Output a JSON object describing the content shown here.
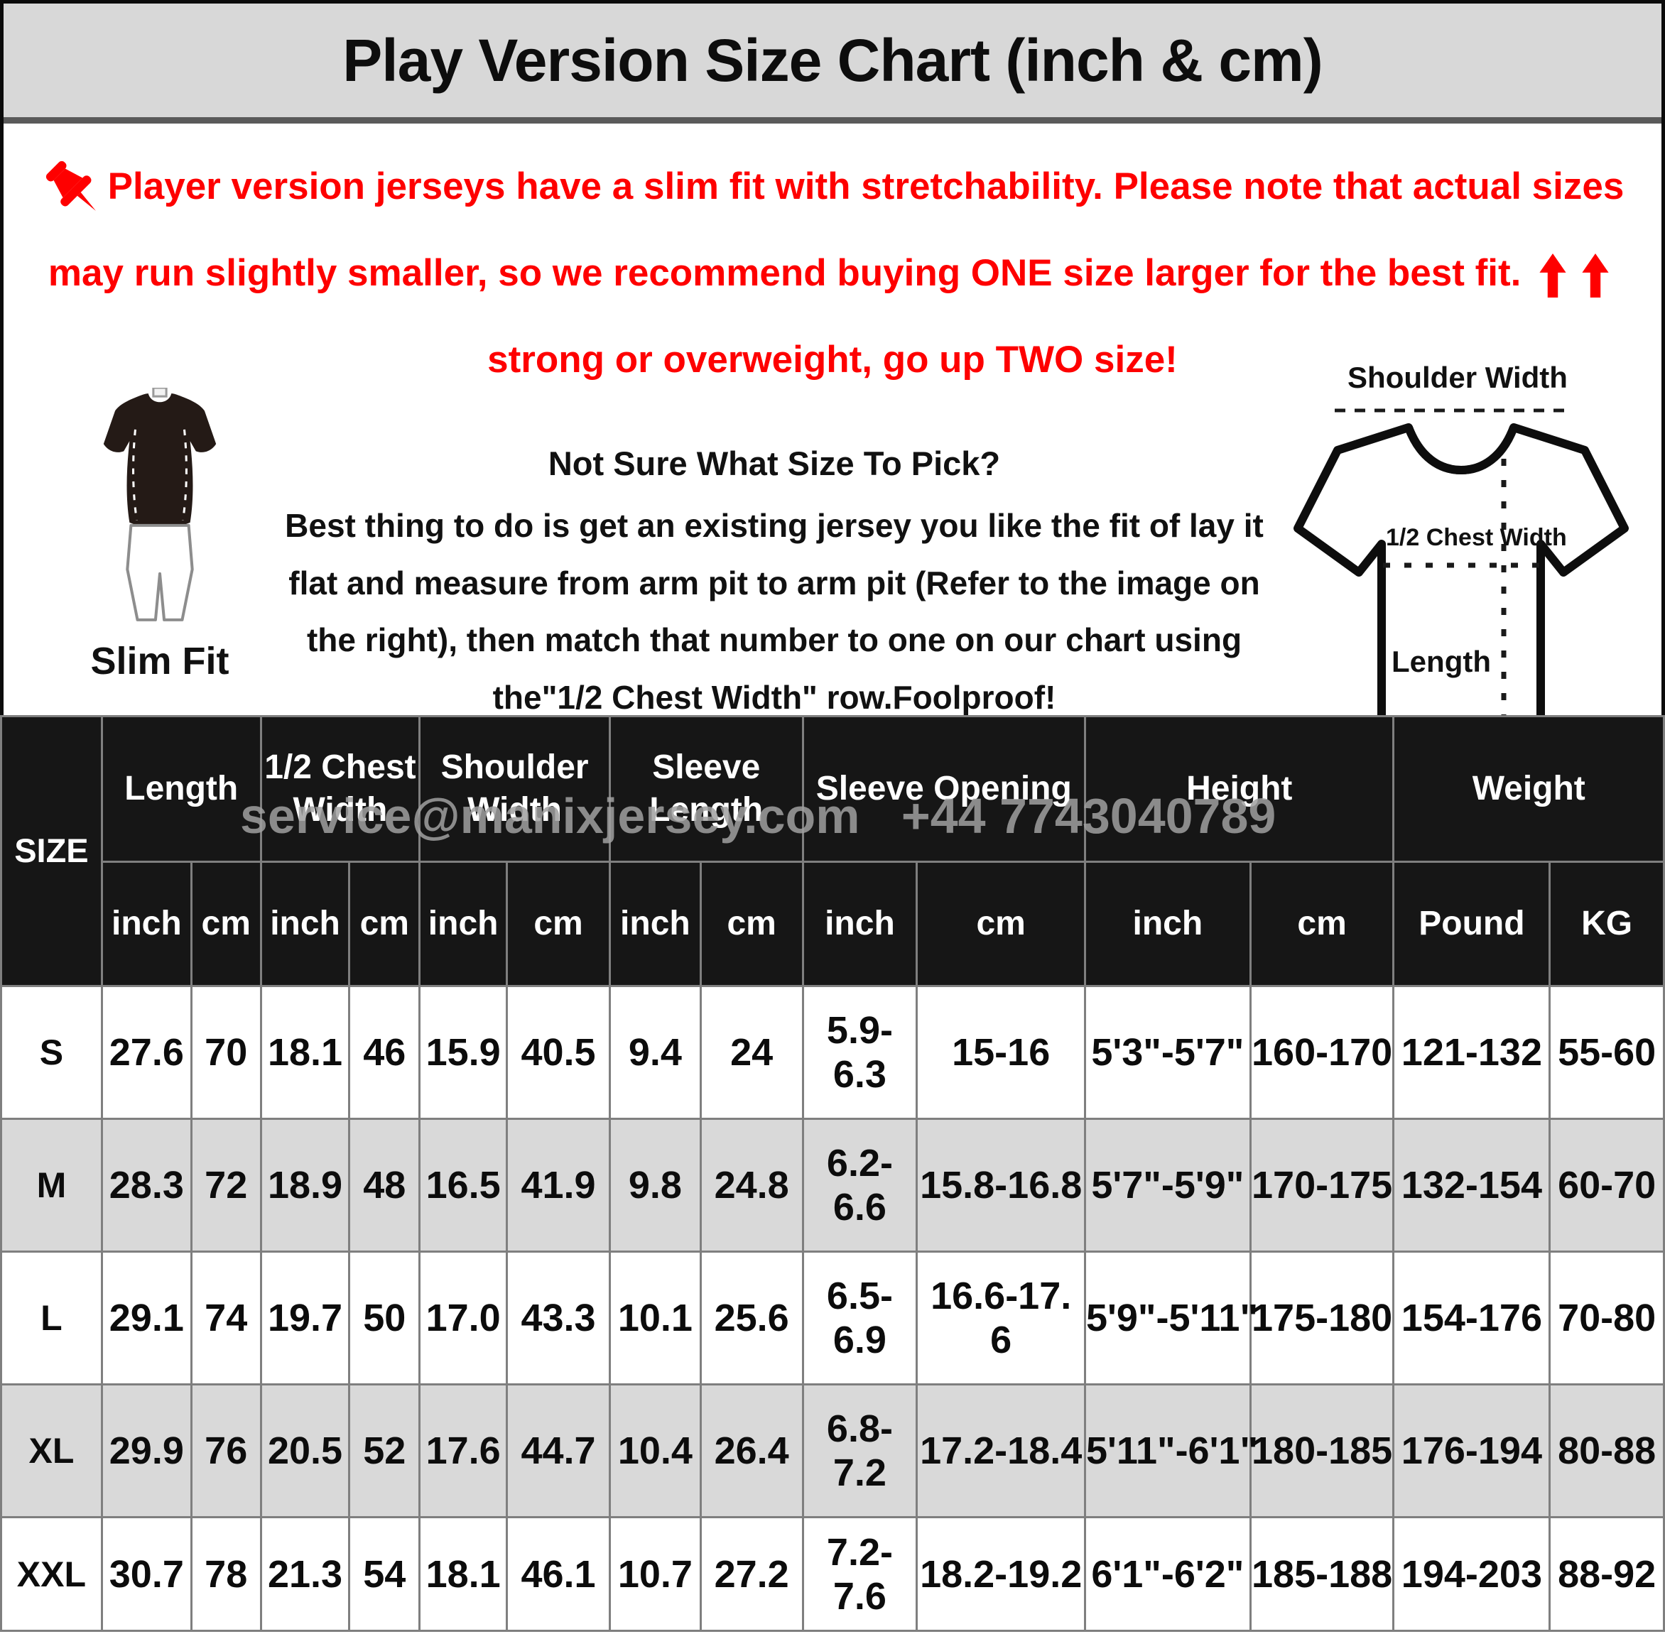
{
  "title": "Play Version Size Chart (inch & cm)",
  "note": {
    "text_before_arrows": "Player version jerseys have a slim fit with stretchability. Please note that actual sizes may run slightly smaller, so we recommend buying ONE size larger for the best fit.",
    "text_after_arrows": "strong or overweight, go up TWO size!"
  },
  "slim_fit_label": "Slim Fit",
  "size_help": {
    "heading": "Not Sure What Size To Pick?",
    "body": "Best thing to do is get an existing jersey you like the fit of lay it flat and measure from arm pit to arm pit (Refer to the image on the right), then match that number to one on our chart using the\"1/2 Chest Width\" row.Foolproof!"
  },
  "diagram_labels": {
    "shoulder_width": "Shoulder Width",
    "half_chest_width": "1/2 Chest Width",
    "length": "Length"
  },
  "watermark": "service@manixjersey.com   +44 7743040789",
  "size_table": {
    "size_header": "SIZE",
    "groups": [
      {
        "label": "Length",
        "sub": [
          "inch",
          "cm"
        ]
      },
      {
        "label": "1/2 Chest Width",
        "sub": [
          "inch",
          "cm"
        ]
      },
      {
        "label": "Shoulder Width",
        "sub": [
          "inch",
          "cm"
        ]
      },
      {
        "label": "Sleeve Length",
        "sub": [
          "inch",
          "cm"
        ]
      },
      {
        "label": "Sleeve Opening",
        "sub": [
          "inch",
          "cm"
        ]
      },
      {
        "label": "Height",
        "sub": [
          "inch",
          "cm"
        ]
      },
      {
        "label": "Weight",
        "sub": [
          "Pound",
          "KG"
        ]
      }
    ],
    "rows": [
      {
        "size": "S",
        "values": [
          "27.6",
          "70",
          "18.1",
          "46",
          "15.9",
          "40.5",
          "9.4",
          "24",
          "5.9-6.3",
          "15-16",
          "5'3\"-5'7\"",
          "160-170",
          "121-132",
          "55-60"
        ]
      },
      {
        "size": "M",
        "values": [
          "28.3",
          "72",
          "18.9",
          "48",
          "16.5",
          "41.9",
          "9.8",
          "24.8",
          "6.2-6.6",
          "15.8-16.8",
          "5'7\"-5'9\"",
          "170-175",
          "132-154",
          "60-70"
        ]
      },
      {
        "size": "L",
        "values": [
          "29.1",
          "74",
          "19.7",
          "50",
          "17.0",
          "43.3",
          "10.1",
          "25.6",
          "6.5-6.9",
          "16.6-17. 6",
          "5'9\"-5'11\"",
          "175-180",
          "154-176",
          "70-80"
        ]
      },
      {
        "size": "XL",
        "values": [
          "29.9",
          "76",
          "20.5",
          "52",
          "17.6",
          "44.7",
          "10.4",
          "26.4",
          "6.8-7.2",
          "17.2-18.4",
          "5'11\"-6'1\"",
          "180-185",
          "176-194",
          "80-88"
        ]
      },
      {
        "size": "XXL",
        "values": [
          "30.7",
          "78",
          "21.3",
          "54",
          "18.1",
          "46.1",
          "10.7",
          "27.2",
          "7.2-7.6",
          "18.2-19.2",
          "6'1\"-6'2\"",
          "185-188",
          "194-203",
          "88-92"
        ]
      }
    ]
  }
}
